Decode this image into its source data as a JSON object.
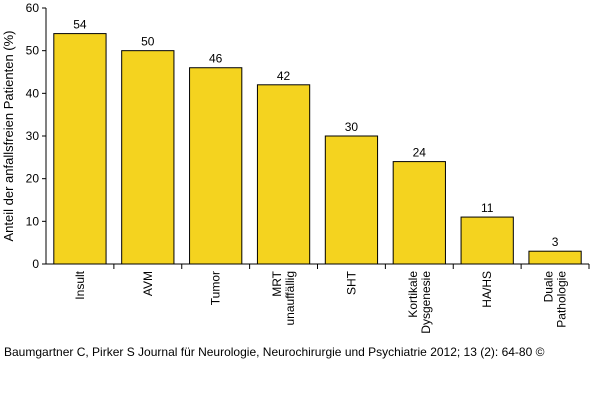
{
  "chart_data": {
    "type": "bar",
    "title": "",
    "xlabel": "",
    "ylabel": "Anteil der anfallsfreien Patienten (%)",
    "ylim": [
      0,
      60
    ],
    "yticks": [
      0,
      10,
      20,
      30,
      40,
      50,
      60
    ],
    "grid": false,
    "bar_color": "#f4d31f",
    "categories": [
      [
        "Insult"
      ],
      [
        "AVM"
      ],
      [
        "Tumor"
      ],
      [
        "MRT",
        "unauffällig"
      ],
      [
        "SHT"
      ],
      [
        "Kortikale",
        "Dysgenesie"
      ],
      [
        "HA/HS"
      ],
      [
        "Duale",
        "Pathologie"
      ]
    ],
    "values": [
      54,
      50,
      46,
      42,
      30,
      24,
      11,
      3
    ]
  },
  "credit": "Baumgartner C, Pirker S Journal für Neurologie, Neurochirurgie und Psychiatrie 2012; 13 (2): 64-80 ©"
}
